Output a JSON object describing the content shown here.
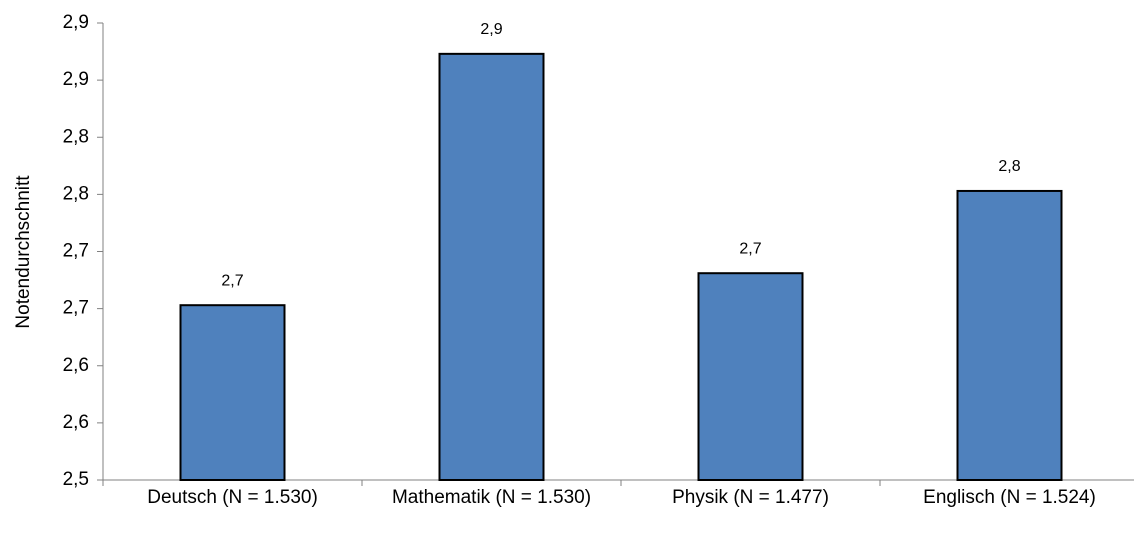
{
  "chart_data": {
    "type": "bar",
    "y_label": "Notendurchschnitt",
    "categories": [
      "Deutsch (N = 1.530)",
      "Mathematik (N = 1.530)",
      "Physik (N = 1.477)",
      "Englisch (N = 1.524)"
    ],
    "values": [
      2.653,
      2.873,
      2.681,
      2.753
    ],
    "value_labels": [
      "2,7",
      "2,9",
      "2,7",
      "2,8"
    ],
    "color": "#4f81bd",
    "ylim": [
      2.5,
      2.9
    ],
    "yticks": [
      {
        "value": 2.5,
        "label": "2,5"
      },
      {
        "value": 2.55,
        "label": "2,6"
      },
      {
        "value": 2.6,
        "label": "2,6"
      },
      {
        "value": 2.65,
        "label": "2,7"
      },
      {
        "value": 2.7,
        "label": "2,7"
      },
      {
        "value": 2.75,
        "label": "2,8"
      },
      {
        "value": 2.8,
        "label": "2,8"
      },
      {
        "value": 2.85,
        "label": "2,9"
      },
      {
        "value": 2.9,
        "label": "2,9"
      }
    ],
    "grid": false
  }
}
